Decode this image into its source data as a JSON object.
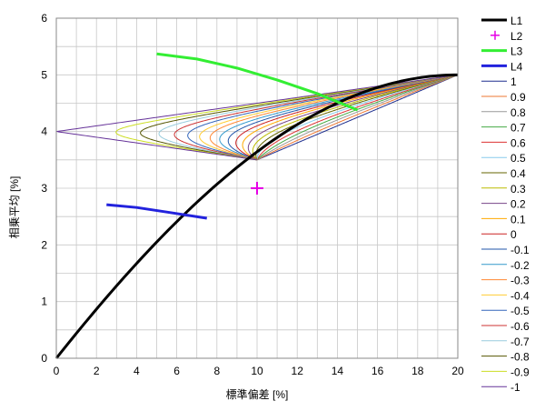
{
  "chart_data": {
    "type": "line",
    "title": "",
    "xlabel": "標準偏差 [%]",
    "ylabel": "相乗平均 [%]",
    "xlim": [
      0,
      20
    ],
    "ylim": [
      0,
      6
    ],
    "xticks": [
      "0",
      "2",
      "4",
      "6",
      "8",
      "10",
      "12",
      "14",
      "16",
      "18",
      "20"
    ],
    "yticks": [
      "0",
      "1",
      "2",
      "3",
      "4",
      "5",
      "6"
    ],
    "grid": true,
    "legend_position": "right",
    "special_series": [
      {
        "name": "L1",
        "color": "#000000",
        "style": "line",
        "x": [
          0,
          2,
          4,
          6,
          8,
          10,
          12,
          14,
          16,
          18,
          20
        ],
        "y": [
          0,
          0.72,
          1.41,
          2.06,
          2.66,
          3.2,
          3.7,
          4.13,
          4.5,
          4.79,
          5.0
        ]
      },
      {
        "name": "L2",
        "color": "#e600e6",
        "style": "marker",
        "x": [
          10
        ],
        "y": [
          3.0
        ]
      },
      {
        "name": "L3",
        "color": "#33ee33",
        "style": "line",
        "x": [
          5,
          7,
          9,
          11,
          13,
          15
        ],
        "y": [
          5.37,
          5.28,
          5.12,
          4.91,
          4.67,
          4.38
        ]
      },
      {
        "name": "L4",
        "color": "#2222dd",
        "style": "line",
        "x": [
          2.5,
          4,
          5.5,
          7.5
        ],
        "y": [
          2.71,
          2.66,
          2.58,
          2.47
        ]
      }
    ],
    "asset_a": {
      "sigma": 10,
      "mean": 3.5
    },
    "asset_b": {
      "sigma": 20,
      "mean": 5.0
    },
    "correlation_series": [
      {
        "name": "1",
        "color": "#1f2f8f"
      },
      {
        "name": "0.9",
        "color": "#ee7733"
      },
      {
        "name": "0.8",
        "color": "#999999"
      },
      {
        "name": "0.7",
        "color": "#44aa44"
      },
      {
        "name": "0.6",
        "color": "#dd3333"
      },
      {
        "name": "0.5",
        "color": "#88ccee"
      },
      {
        "name": "0.4",
        "color": "#666600"
      },
      {
        "name": "0.3",
        "color": "#bbbb00"
      },
      {
        "name": "0.2",
        "color": "#774488"
      },
      {
        "name": "0.1",
        "color": "#ffaa00"
      },
      {
        "name": "0",
        "color": "#cc2222"
      },
      {
        "name": "-0.1",
        "color": "#2255aa"
      },
      {
        "name": "-0.2",
        "color": "#3399cc"
      },
      {
        "name": "-0.3",
        "color": "#ff8833"
      },
      {
        "name": "-0.4",
        "color": "#ffcc33"
      },
      {
        "name": "-0.5",
        "color": "#3366bb"
      },
      {
        "name": "-0.6",
        "color": "#cc3333"
      },
      {
        "name": "-0.7",
        "color": "#99ccdd"
      },
      {
        "name": "-0.8",
        "color": "#555500"
      },
      {
        "name": "-0.9",
        "color": "#ccdd22"
      },
      {
        "name": "-1",
        "color": "#663399"
      }
    ]
  }
}
